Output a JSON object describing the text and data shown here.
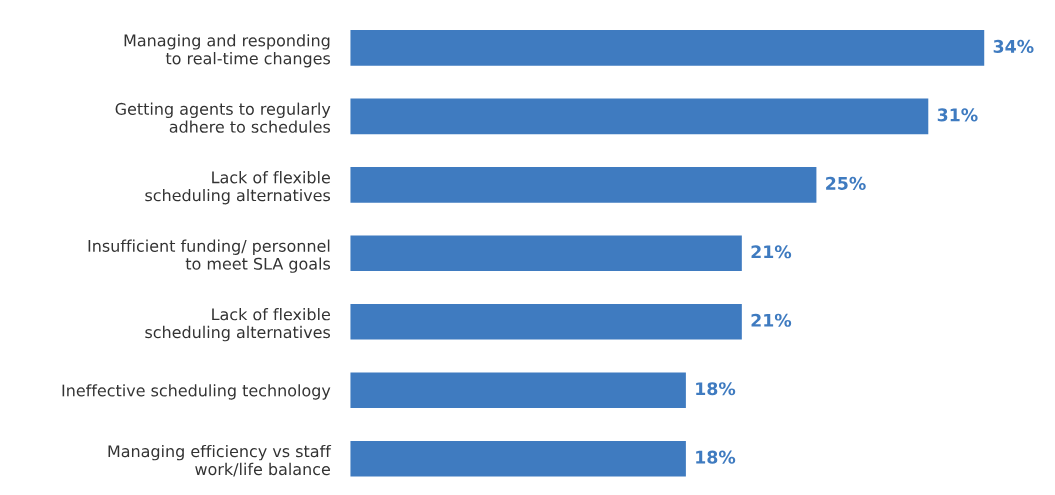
{
  "chart_data": {
    "type": "bar",
    "orientation": "horizontal",
    "categories": [
      "Managing and responding\nto real-time changes",
      "Getting agents to regularly\nadhere to schedules",
      "Lack of flexible\nscheduling alternatives",
      "Insufficient funding/ personnel\nto meet SLA goals",
      "Lack of flexible\nscheduling alternatives",
      "Ineffective scheduling technology",
      "Managing efficiency vs staff\nwork/life balance"
    ],
    "values": [
      34,
      31,
      25,
      21,
      21,
      18,
      18
    ],
    "value_labels": [
      "34%",
      "31%",
      "25%",
      "21%",
      "21%",
      "18%",
      "18%"
    ],
    "color": "#3f7bc0",
    "grid": false,
    "legend": false
  }
}
